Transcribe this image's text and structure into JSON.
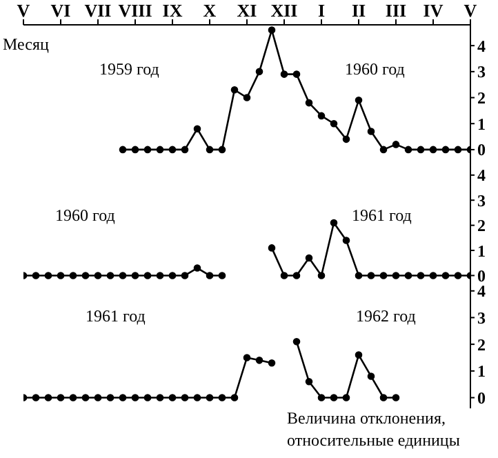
{
  "chart_data": [
    {
      "type": "line",
      "annotations": [
        "Месяц",
        "1959 год",
        "1960 год"
      ],
      "categories": [
        "V",
        null,
        null,
        "VI",
        null,
        null,
        "VII",
        null,
        null,
        "VIII",
        null,
        null,
        "IX",
        null,
        null,
        "X",
        null,
        null,
        "XI",
        null,
        null,
        "XII",
        null,
        null,
        "I",
        null,
        null,
        "II",
        null,
        null,
        "III",
        null,
        null,
        "IV",
        null,
        null,
        "V"
      ],
      "ylim": [
        -0.4,
        4.8
      ],
      "yticks": [
        0,
        1,
        2,
        3,
        4
      ],
      "marker": "circle",
      "line_style": "solid",
      "series": [
        {
          "color": "#000000",
          "values": [
            null,
            null,
            null,
            null,
            null,
            null,
            null,
            null,
            0,
            0,
            0,
            0,
            0,
            0,
            0.8,
            0,
            0,
            2.3,
            2.0,
            3.0,
            4.6,
            2.9,
            2.9,
            1.8,
            1.3,
            1.0,
            0.4,
            1.9,
            0.7,
            0,
            0.2,
            0,
            0,
            0,
            0,
            0,
            0
          ]
        }
      ]
    },
    {
      "type": "line",
      "annotations": [
        "1960 год",
        "1961 год"
      ],
      "categories": [
        null,
        null,
        null,
        null,
        null,
        null,
        null,
        null,
        null,
        null,
        null,
        null,
        null,
        null,
        null,
        null,
        null,
        null,
        null,
        null,
        null,
        null,
        null,
        null,
        null,
        null,
        null,
        null,
        null,
        null,
        null,
        null,
        null,
        null,
        null,
        null,
        null
      ],
      "tick_labels": "y",
      "ylim": [
        -0.4,
        4.6
      ],
      "yticks": [
        0,
        1,
        2,
        3,
        4
      ],
      "marker": "circle",
      "line_style": "solid",
      "series": [
        {
          "color": "#000000",
          "values": [
            0,
            0,
            0,
            0,
            0,
            0,
            0,
            0,
            0,
            0,
            0,
            0,
            0,
            0,
            0.3,
            0,
            0,
            null,
            null,
            null,
            1.1,
            0,
            0,
            0.7,
            0,
            2.1,
            1.4,
            0,
            0,
            0,
            0,
            0,
            0,
            0,
            0,
            0,
            0
          ]
        }
      ]
    },
    {
      "type": "line",
      "annotations": [
        "1961 год",
        "1962 год",
        "Величина отклонения, относительные единицы"
      ],
      "categories": [
        null,
        null,
        null,
        null,
        null,
        null,
        null,
        null,
        null,
        null,
        null,
        null,
        null,
        null,
        null,
        null,
        null,
        null,
        null,
        null,
        null,
        null,
        null,
        null,
        null,
        null,
        null,
        null,
        null,
        null,
        null,
        null,
        null,
        null,
        null,
        null,
        null
      ],
      "tick_labels": "y",
      "ylim": [
        -0.4,
        4.2
      ],
      "yticks": [
        0,
        1,
        2,
        3,
        4
      ],
      "marker": "circle",
      "line_style": "solid",
      "series": [
        {
          "color": "#000000",
          "values": [
            0,
            0,
            0,
            0,
            0,
            0,
            0,
            0,
            0,
            0,
            0,
            0,
            0,
            0,
            0,
            0,
            0,
            0,
            1.5,
            1.4,
            1.3,
            null,
            2.1,
            0.6,
            0,
            0,
            0,
            1.6,
            0.8,
            0,
            0,
            null,
            null,
            null,
            null,
            null,
            null
          ]
        }
      ]
    }
  ]
}
